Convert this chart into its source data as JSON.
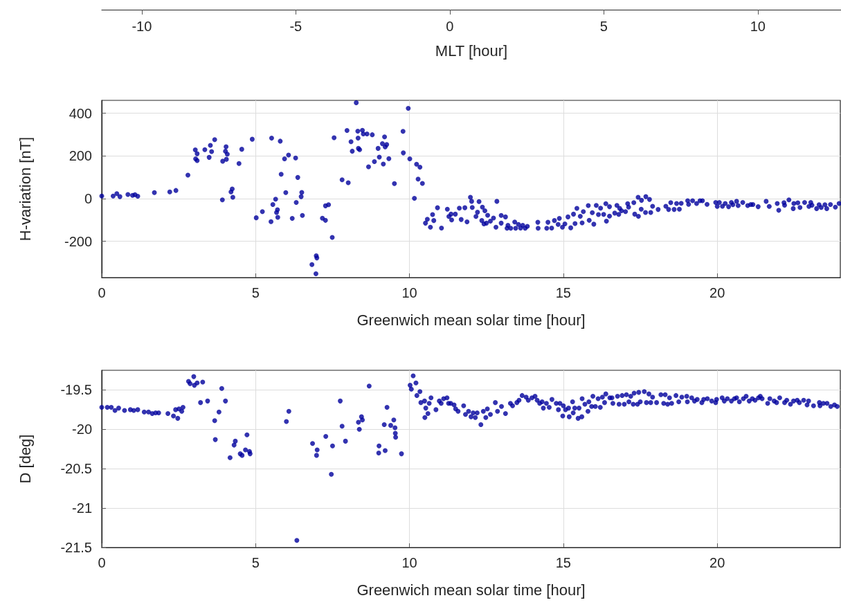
{
  "chart_data": [
    {
      "type": "scatter",
      "xlabel": "Greenwich mean solar time [hour]",
      "ylabel": "H-variation [nT]",
      "x2label": "MLT [hour]",
      "xlim": [
        0,
        24
      ],
      "xticks": [
        0,
        5,
        10,
        15,
        20
      ],
      "ylim": [
        -370,
        460
      ],
      "yticks": [
        -200,
        0,
        200,
        400
      ],
      "x2lim": [
        -11.3,
        12.7
      ],
      "x2ticks": [
        -10,
        -5,
        0,
        5,
        10
      ],
      "grid": true,
      "marker": "circle",
      "color": "#00009c",
      "x": [
        0,
        0.37,
        0.49,
        0.59,
        0.85,
        1.0,
        1.08,
        1.17,
        1.71,
        2.21,
        2.41,
        2.8,
        3.04,
        3.1,
        3.05,
        3.1,
        3.35,
        3.53,
        3.57,
        3.49,
        3.67,
        4.04,
        4.02,
        4.08,
        4.05,
        3.93,
        3.92,
        4.24,
        4.2,
        4.26,
        4.46,
        4.55,
        4.89,
        5.02,
        5.22,
        5.52,
        5.5,
        5.8,
        5.65,
        5.56,
        5.71,
        5.68,
        5.72,
        5.83,
        5.94,
        6.07,
        5.98,
        6.19,
        6.3,
        6.37,
        6.32,
        6.5,
        6.48,
        6.52,
        6.83,
        6.97,
        6.99,
        6.96,
        7.17,
        7.27,
        7.27,
        7.37,
        7.49,
        7.55,
        7.81,
        8.01,
        7.97,
        8.1,
        8.14,
        8.27,
        8.32,
        8.33,
        8.34,
        8.38,
        8.47,
        8.5,
        8.62,
        8.79,
        8.67,
        8.86,
        8.98,
        9.02,
        9.15,
        9.12,
        9.19,
        9.21,
        9.26,
        9.33,
        9.51,
        9.79,
        9.8,
        9.96,
        10.01,
        10.16,
        10.23,
        10.34,
        10.28,
        10.42,
        10.52,
        10.58,
        10.68,
        10.79,
        10.75,
        10.91,
        11.04,
        11.23,
        11.28,
        11.35,
        11.37,
        11.49,
        11.62,
        11.68,
        11.8,
        11.87,
        11.98,
        12.02,
        12.04,
        12.26,
        12.16,
        12.21,
        12.37,
        12.45,
        12.35,
        12.42,
        12.54,
        12.5,
        12.63,
        12.73,
        12.84,
        12.81,
        12.98,
        12.98,
        13.12,
        13.2,
        13.17,
        13.29,
        13.42,
        13.45,
        13.54,
        13.61,
        13.68,
        13.76,
        13.83,
        14.17,
        14.18,
        14.46,
        14.5,
        14.62,
        14.71,
        14.87,
        14.83,
        14.97,
        15.05,
        15.15,
        15.24,
        15.33,
        15.38,
        15.44,
        15.55,
        15.61,
        15.65,
        15.81,
        15.84,
        15.94,
        15.99,
        16.07,
        16.14,
        16.21,
        16.31,
        16.38,
        16.4,
        16.5,
        16.5,
        16.67,
        16.74,
        16.83,
        16.8,
        16.89,
        17.02,
        17.09,
        17.12,
        17.29,
        17.32,
        17.44,
        17.43,
        17.53,
        17.54,
        17.68,
        17.8,
        17.67,
        17.84,
        17.9,
        18.08,
        18.33,
        18.42,
        18.49,
        18.6,
        18.68,
        18.77,
        18.83,
        19.04,
        19.07,
        19.2,
        19.33,
        19.44,
        19.52,
        19.67,
        19.95,
        20.0,
        20.07,
        20.17,
        20.26,
        20.37,
        20.46,
        20.51,
        20.63,
        20.68,
        20.83,
        20.99,
        21.09,
        21.16,
        21.33,
        21.59,
        21.69,
        21.95,
        22.0,
        22.19,
        22.17,
        22.33,
        22.49,
        22.47,
        22.62,
        22.69,
        22.84,
        22.98,
        23.04,
        23.08,
        23.23,
        23.31,
        23.38,
        23.5,
        23.56,
        23.68,
        23.84,
        23.96
      ],
      "values": [
        12,
        12,
        23,
        9,
        19,
        15,
        18,
        11,
        28,
        31,
        38,
        110,
        228,
        210,
        186,
        178,
        229,
        249,
        220,
        193,
        276,
        243,
        222,
        208,
        184,
        175,
        -6,
        45,
        31,
        6,
        164,
        231,
        278,
        -90,
        -61,
        283,
        -108,
        269,
        -3,
        -28,
        -52,
        -65,
        -88,
        114,
        186,
        204,
        28,
        -93,
        190,
        99,
        -18,
        29,
        9,
        -79,
        -309,
        -268,
        -278,
        -352,
        -92,
        -102,
        -34,
        -29,
        -182,
        285,
        88,
        74,
        319,
        266,
        222,
        449,
        316,
        283,
        235,
        229,
        320,
        303,
        303,
        299,
        149,
        173,
        235,
        194,
        162,
        257,
        289,
        242,
        253,
        187,
        70,
        315,
        214,
        423,
        186,
        1,
        161,
        147,
        91,
        71,
        -115,
        -97,
        -134,
        -103,
        -75,
        -43,
        -138,
        -50,
        -84,
        -73,
        -100,
        -73,
        -45,
        -98,
        -43,
        -109,
        6,
        -13,
        -42,
        -14,
        -84,
        -64,
        -40,
        -57,
        -103,
        -119,
        -78,
        -115,
        -106,
        -91,
        -13,
        -134,
        -79,
        -115,
        -86,
        -125,
        -139,
        -139,
        -110,
        -139,
        -121,
        -138,
        -125,
        -139,
        -130,
        -111,
        -139,
        -139,
        -111,
        -138,
        -103,
        -93,
        -121,
        -134,
        -119,
        -86,
        -137,
        -73,
        -117,
        -46,
        -83,
        -114,
        -61,
        -33,
        -102,
        -66,
        -120,
        -32,
        -75,
        -45,
        -74,
        -24,
        -106,
        -38,
        -82,
        -68,
        -32,
        -46,
        -74,
        -57,
        -61,
        -24,
        -40,
        -19,
        -73,
        -83,
        6,
        -50,
        -8,
        9,
        -4,
        -65,
        -65,
        -36,
        -51,
        -36,
        -51,
        -19,
        -51,
        -23,
        -50,
        -22,
        -10,
        -27,
        -10,
        -23,
        -10,
        -10,
        -27,
        -18,
        -37,
        -18,
        -36,
        -23,
        -38,
        -18,
        -29,
        -13,
        -33,
        -18,
        -33,
        -28,
        -28,
        -38,
        -13,
        -37,
        -23,
        -55,
        -31,
        -19,
        -6,
        -23,
        -47,
        -20,
        -42,
        -18,
        -37,
        -18,
        -31,
        -47,
        -29,
        -42,
        -29,
        -47,
        -28,
        -40,
        -23
      ]
    },
    {
      "type": "scatter",
      "xlabel": "Greenwich mean solar time [hour]",
      "ylabel": "D [deg]",
      "xlim": [
        0,
        24
      ],
      "xticks": [
        0,
        5,
        10,
        15,
        20
      ],
      "ylim": [
        -21.5,
        -19.25
      ],
      "yticks": [
        -21.5,
        -21,
        -20.5,
        -20,
        -19.5
      ],
      "grid": true,
      "marker": "circle",
      "color": "#00009c",
      "x": [
        0,
        0.18,
        0.31,
        0.43,
        0.55,
        0.74,
        0.93,
        1.04,
        1.17,
        1.38,
        1.52,
        1.64,
        1.75,
        1.85,
        2.15,
        2.33,
        2.47,
        2.4,
        2.51,
        2.6,
        2.64,
        2.82,
        2.87,
        2.99,
        3.01,
        3.1,
        3.28,
        3.21,
        3.44,
        3.67,
        3.69,
        3.81,
        3.9,
        4.02,
        4.17,
        4.3,
        4.34,
        4.72,
        4.5,
        4.56,
        4.67,
        4.8,
        4.82,
        6.0,
        6.08,
        6.34,
        6.85,
        7.0,
        6.98,
        7.28,
        7.46,
        7.5,
        7.75,
        7.81,
        7.92,
        8.34,
        8.37,
        8.44,
        8.47,
        8.69,
        9.01,
        9.0,
        9.21,
        9.18,
        9.27,
        9.39,
        9.49,
        9.53,
        9.54,
        9.55,
        9.74,
        10.02,
        10.06,
        10.12,
        10.21,
        10.24,
        10.34,
        10.37,
        10.49,
        10.53,
        10.5,
        10.6,
        10.64,
        10.7,
        10.86,
        10.97,
        11.03,
        11.11,
        11.22,
        11.27,
        11.34,
        11.45,
        11.5,
        11.58,
        11.76,
        11.82,
        11.92,
        12.0,
        12.07,
        12.14,
        12.2,
        12.32,
        12.4,
        12.48,
        12.53,
        12.63,
        12.79,
        12.86,
        12.99,
        13.12,
        13.28,
        13.35,
        13.49,
        13.56,
        13.66,
        13.79,
        13.86,
        13.98,
        14.08,
        14.15,
        14.23,
        14.31,
        14.35,
        14.45,
        14.54,
        14.63,
        14.77,
        14.84,
        14.89,
        15.0,
        14.98,
        15.07,
        15.17,
        15.19,
        15.32,
        15.3,
        15.37,
        15.48,
        15.51,
        15.6,
        15.61,
        15.7,
        15.8,
        15.83,
        15.92,
        15.96,
        16.04,
        16.13,
        16.2,
        16.27,
        16.34,
        16.38,
        16.51,
        16.58,
        16.61,
        16.76,
        16.81,
        16.91,
        16.98,
        17.05,
        17.13,
        17.19,
        17.27,
        17.3,
        17.41,
        17.45,
        17.5,
        17.63,
        17.7,
        17.78,
        17.84,
        17.9,
        18.03,
        18.17,
        18.26,
        18.31,
        18.39,
        18.45,
        18.52,
        18.66,
        18.75,
        18.85,
        19.01,
        19.03,
        19.17,
        19.26,
        19.35,
        19.5,
        19.56,
        19.68,
        19.82,
        19.95,
        19.98,
        20.16,
        20.23,
        20.33,
        20.46,
        20.56,
        20.63,
        20.72,
        20.85,
        20.94,
        21.04,
        21.14,
        21.23,
        21.34,
        21.4,
        21.46,
        21.64,
        21.71,
        21.85,
        21.93,
        22.03,
        22.19,
        22.26,
        22.38,
        22.48,
        22.6,
        22.67,
        22.81,
        22.92,
        22.97,
        23.13,
        23.32,
        23.34,
        23.45,
        23.57,
        23.69,
        23.81,
        23.9
      ],
      "values": [
        -19.72,
        -19.72,
        -19.72,
        -19.76,
        -19.73,
        -19.76,
        -19.75,
        -19.76,
        -19.75,
        -19.78,
        -19.78,
        -19.8,
        -19.79,
        -19.79,
        -19.8,
        -19.83,
        -19.86,
        -19.75,
        -19.74,
        -19.77,
        -19.72,
        -19.39,
        -19.42,
        -19.33,
        -19.44,
        -19.41,
        -19.4,
        -19.66,
        -19.64,
        -19.89,
        -20.13,
        -19.78,
        -19.48,
        -19.64,
        -20.36,
        -20.2,
        -20.15,
        -20.07,
        -20.31,
        -20.33,
        -20.26,
        -20.28,
        -20.31,
        -19.9,
        -19.77,
        -21.41,
        -20.18,
        -20.26,
        -20.33,
        -20.09,
        -20.57,
        -20.21,
        -19.64,
        -19.96,
        -20.15,
        -19.91,
        -20.0,
        -19.84,
        -19.88,
        -19.45,
        -20.21,
        -20.3,
        -20.27,
        -19.94,
        -19.72,
        -19.95,
        -19.88,
        -19.98,
        -20.05,
        -20.1,
        -20.31,
        -19.44,
        -19.49,
        -19.32,
        -19.41,
        -19.57,
        -19.52,
        -19.66,
        -19.64,
        -19.73,
        -19.85,
        -19.8,
        -19.67,
        -19.6,
        -19.75,
        -19.64,
        -19.67,
        -19.61,
        -19.6,
        -19.67,
        -19.67,
        -19.69,
        -19.74,
        -19.77,
        -19.7,
        -19.81,
        -19.77,
        -19.84,
        -19.79,
        -19.85,
        -19.79,
        -19.94,
        -19.77,
        -19.85,
        -19.74,
        -19.81,
        -19.66,
        -19.77,
        -19.71,
        -19.8,
        -19.67,
        -19.7,
        -19.66,
        -19.63,
        -19.57,
        -19.59,
        -19.63,
        -19.6,
        -19.58,
        -19.63,
        -19.67,
        -19.65,
        -19.73,
        -19.67,
        -19.72,
        -19.62,
        -19.67,
        -19.75,
        -19.67,
        -19.7,
        -19.83,
        -19.75,
        -19.73,
        -19.84,
        -19.79,
        -19.65,
        -19.73,
        -19.86,
        -19.73,
        -19.84,
        -19.61,
        -19.68,
        -19.77,
        -19.65,
        -19.71,
        -19.58,
        -19.71,
        -19.61,
        -19.72,
        -19.59,
        -19.66,
        -19.55,
        -19.6,
        -19.6,
        -19.67,
        -19.58,
        -19.68,
        -19.57,
        -19.68,
        -19.56,
        -19.65,
        -19.58,
        -19.68,
        -19.54,
        -19.68,
        -19.53,
        -19.65,
        -19.52,
        -19.66,
        -19.55,
        -19.66,
        -19.59,
        -19.66,
        -19.56,
        -19.67,
        -19.56,
        -19.68,
        -19.6,
        -19.67,
        -19.57,
        -19.65,
        -19.59,
        -19.58,
        -19.65,
        -19.6,
        -19.64,
        -19.62,
        -19.66,
        -19.62,
        -19.61,
        -19.64,
        -19.66,
        -19.62,
        -19.6,
        -19.64,
        -19.61,
        -19.64,
        -19.61,
        -19.6,
        -19.65,
        -19.61,
        -19.58,
        -19.64,
        -19.61,
        -19.63,
        -19.6,
        -19.58,
        -19.61,
        -19.67,
        -19.61,
        -19.64,
        -19.66,
        -19.6,
        -19.66,
        -19.63,
        -19.68,
        -19.64,
        -19.63,
        -19.66,
        -19.63,
        -19.69,
        -19.64,
        -19.7,
        -19.66,
        -19.7,
        -19.67,
        -19.67,
        -19.71,
        -19.69,
        -19.71
      ]
    }
  ]
}
